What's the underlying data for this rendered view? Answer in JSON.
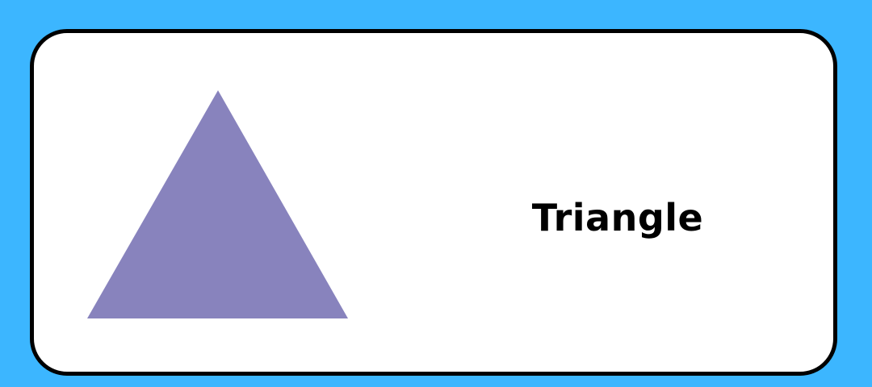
{
  "card": {
    "label": "Triangle"
  },
  "shape": {
    "kind": "triangle",
    "fill_color": "#8883bd"
  },
  "colors": {
    "background": "#3cb6ff",
    "card_background": "#ffffff",
    "card_border": "#000000",
    "text": "#000000"
  }
}
